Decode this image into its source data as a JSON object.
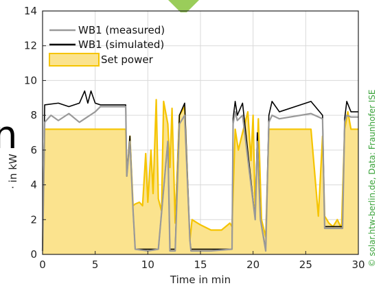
{
  "chart_data": {
    "type": "line",
    "title": "",
    "xlabel": "Time in min",
    "ylabel": "· in kW",
    "xlim": [
      0,
      30
    ],
    "ylim": [
      0,
      14
    ],
    "xticks": [
      0,
      5,
      10,
      15,
      20,
      25,
      30
    ],
    "yticks": [
      0,
      2,
      4,
      6,
      8,
      10,
      12,
      14
    ],
    "grid": true,
    "legend_position": "top-left",
    "credit": "© solar.htw-berlin.de, Data: Fraunhofer ISE",
    "colors": {
      "measured": "#999999",
      "simulated": "#000000",
      "set_power_line": "#f5c400",
      "set_power_fill": "#fbe38e",
      "credit": "#3aa33a"
    },
    "series": [
      {
        "name": "WB1 (measured)",
        "x": [
          0,
          0.2,
          0.8,
          1.5,
          2.5,
          3.5,
          4.5,
          5.0,
          5.5,
          6.0,
          7.0,
          7.9,
          8.0,
          8.3,
          8.6,
          8.8,
          10.0,
          11.0,
          11.9,
          12.1,
          12.6,
          13.0,
          13.5,
          14.0,
          14.1,
          16.0,
          18.0,
          18.1,
          18.3,
          18.5,
          19.0,
          20.2,
          20.4,
          20.7,
          21.2,
          21.5,
          21.8,
          22.5,
          25.5,
          26.6,
          26.8,
          27.5,
          28.5,
          28.7,
          28.9,
          29.3,
          30.0
        ],
        "y": [
          0.2,
          7.6,
          8.0,
          7.7,
          8.1,
          7.6,
          8.0,
          8.2,
          8.5,
          8.5,
          8.5,
          8.5,
          4.5,
          6.5,
          2.5,
          0.3,
          0.2,
          0.3,
          6.5,
          0.2,
          0.2,
          7.5,
          8.0,
          0.8,
          0.2,
          0.2,
          0.3,
          7.5,
          8.2,
          7.7,
          8.0,
          2.0,
          6.5,
          2.0,
          0.2,
          7.6,
          8.0,
          7.8,
          8.1,
          7.8,
          1.5,
          1.5,
          1.5,
          7.6,
          8.0,
          7.9,
          7.9
        ]
      },
      {
        "name": "WB1 (simulated)",
        "x": [
          0,
          0.2,
          1.5,
          2.5,
          3.5,
          4.0,
          4.3,
          4.6,
          5.0,
          5.5,
          6.0,
          7.0,
          7.9,
          8.0,
          8.3,
          8.6,
          8.8,
          10.0,
          11.0,
          11.9,
          12.1,
          12.6,
          13.0,
          13.5,
          14.0,
          14.1,
          16.0,
          18.0,
          18.1,
          18.3,
          18.5,
          19.0,
          20.2,
          20.4,
          20.7,
          21.2,
          21.5,
          21.8,
          22.5,
          25.5,
          26.6,
          26.8,
          27.5,
          28.5,
          28.7,
          28.9,
          29.3,
          30.0
        ],
        "y": [
          0.2,
          8.6,
          8.7,
          8.5,
          8.7,
          9.4,
          8.7,
          9.4,
          8.7,
          8.6,
          8.6,
          8.6,
          8.6,
          4.5,
          6.8,
          2.5,
          0.3,
          0.3,
          0.3,
          6.5,
          0.3,
          0.3,
          8.0,
          8.7,
          0.8,
          0.3,
          0.3,
          0.3,
          7.8,
          8.8,
          8.0,
          8.7,
          2.0,
          7.0,
          2.0,
          0.3,
          8.0,
          8.8,
          8.2,
          8.8,
          8.0,
          1.6,
          1.6,
          1.6,
          7.8,
          8.8,
          8.2,
          8.2
        ]
      },
      {
        "name": "Set power",
        "x": [
          0,
          0.2,
          1.0,
          2.0,
          3.0,
          4.0,
          5.0,
          6.0,
          7.0,
          7.9,
          8.0,
          8.3,
          8.6,
          8.8,
          9.2,
          9.5,
          9.8,
          10.0,
          10.3,
          10.5,
          10.8,
          11.0,
          11.3,
          11.5,
          11.9,
          12.1,
          12.3,
          12.6,
          13.0,
          13.5,
          14.0,
          14.2,
          15.0,
          16.0,
          17.0,
          17.8,
          18.0,
          18.3,
          18.6,
          19.0,
          19.5,
          19.8,
          20.0,
          20.2,
          20.5,
          20.8,
          21.2,
          21.5,
          22.5,
          25.5,
          26.2,
          26.6,
          26.8,
          27.2,
          27.6,
          28.0,
          28.4,
          28.7,
          29.0,
          29.3,
          30.0
        ],
        "y": [
          0.2,
          7.2,
          7.2,
          7.2,
          7.2,
          7.2,
          7.2,
          7.2,
          7.2,
          7.2,
          4.5,
          6.8,
          2.8,
          2.9,
          3.0,
          2.8,
          5.8,
          3.0,
          6.0,
          3.5,
          8.9,
          3.2,
          2.5,
          8.8,
          7.5,
          5.0,
          8.4,
          1.8,
          8.0,
          8.5,
          0.8,
          2.0,
          1.7,
          1.4,
          1.4,
          1.8,
          1.6,
          7.2,
          6.0,
          7.0,
          8.2,
          5.4,
          8.0,
          2.5,
          7.8,
          2.0,
          1.0,
          7.2,
          7.2,
          7.2,
          2.2,
          6.8,
          2.2,
          1.8,
          1.6,
          2.0,
          1.5,
          7.2,
          8.2,
          7.2,
          7.2
        ]
      }
    ]
  }
}
